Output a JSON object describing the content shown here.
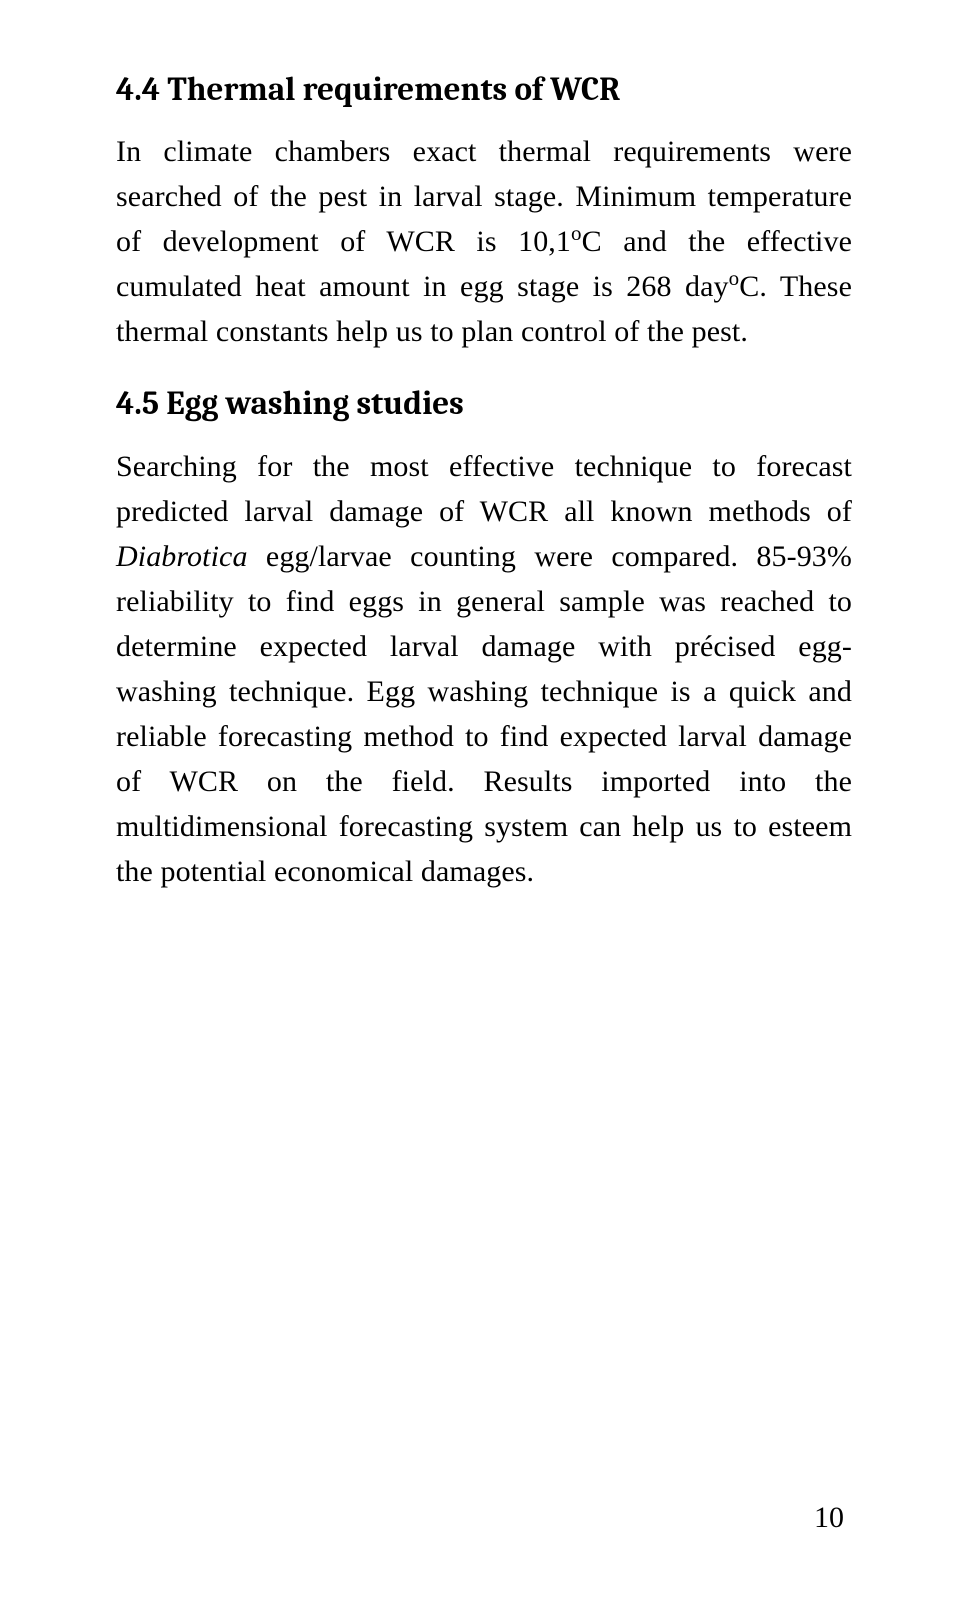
{
  "section1": {
    "heading": "4.4 Thermal requirements of WCR",
    "p1_a": "In climate chambers exact thermal requirements were searched of the pest in larval stage. Minimum temperature of development of WCR is 10,1",
    "p1_sup1": "o",
    "p1_b": "C and the effective cumulated heat amount in egg stage is 268 day",
    "p1_sup2": "o",
    "p1_c": "C. These thermal constants help us to plan control of the pest."
  },
  "section2": {
    "heading": "4.5 Egg washing studies",
    "p1_a": "Searching for the most effective technique to forecast predicted larval damage of WCR all known methods of ",
    "p1_italic": "Diabrotica",
    "p1_b": " egg/larvae counting were compared. 85-93% reliability to find eggs in general sample was reached to determine expected larval damage with précised egg-washing technique. Egg washing technique is a quick and reliable forecasting method to find expected larval damage of WCR on the field. Results imported into the multidimensional forecasting system can help us to esteem the potential economical damages."
  },
  "pagenum": "10"
}
